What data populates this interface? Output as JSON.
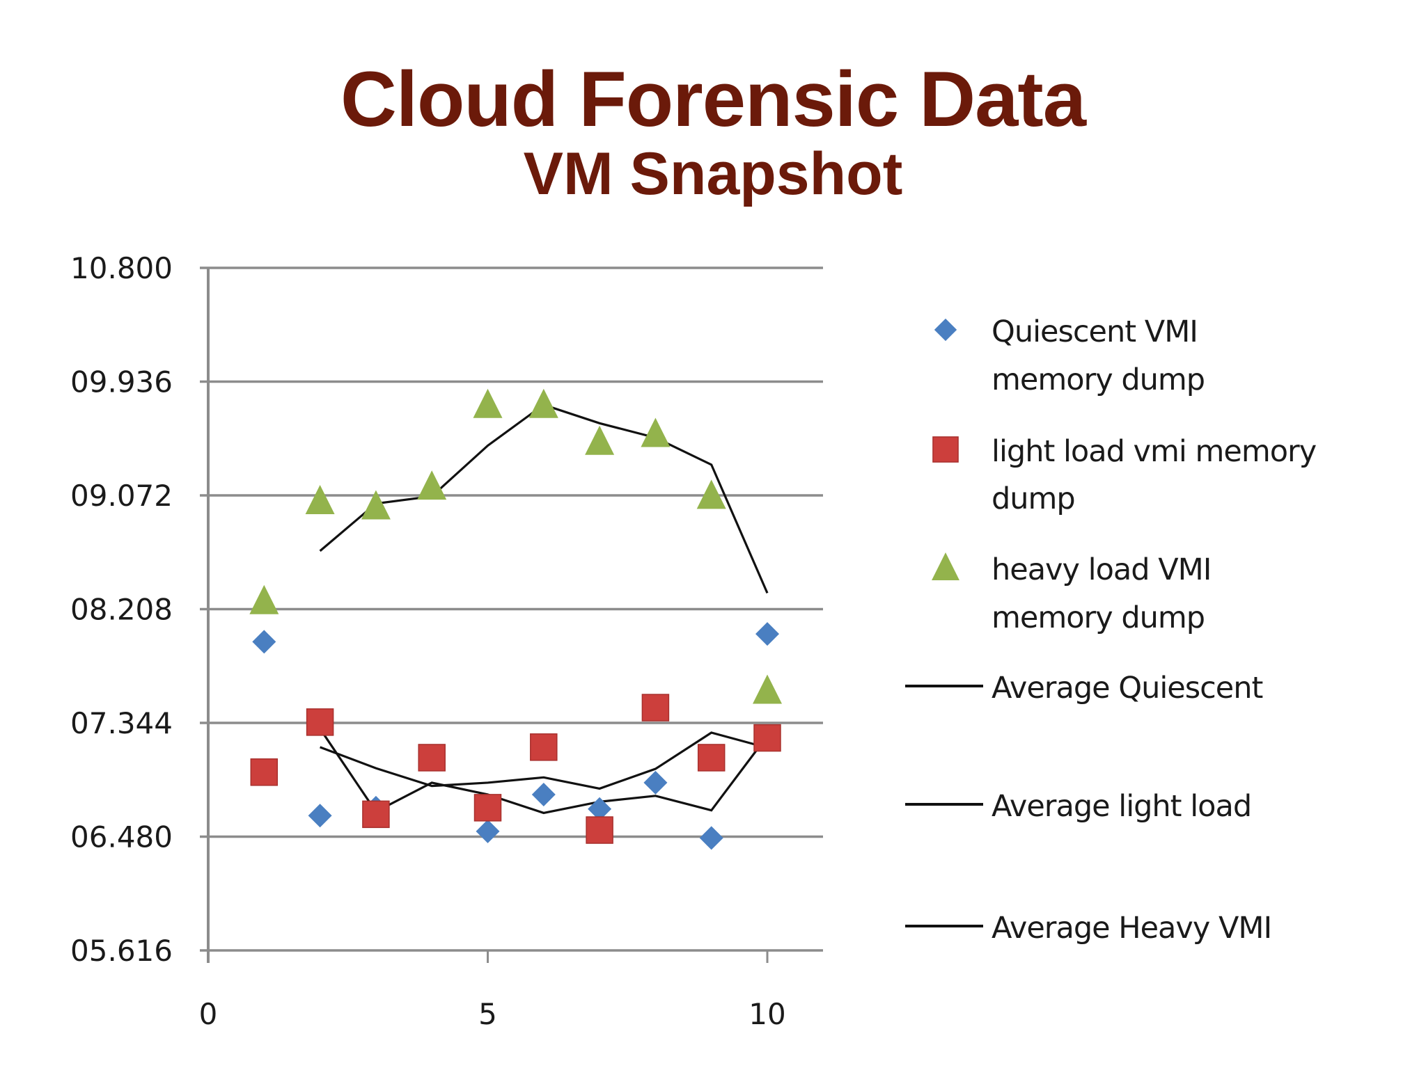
{
  "header": {
    "title": "Cloud Forensic Data",
    "subtitle": "VM Snapshot"
  },
  "colors": {
    "title": "#6b1a0a",
    "quiescent": "#4a7fc1",
    "light": "#cc3f3c",
    "heavy": "#93b34c",
    "average_line": "#111111",
    "grid": "#8c8c8c"
  },
  "chart_data": {
    "type": "scatter",
    "title": "Cloud Forensic Data — VM Snapshot",
    "xlabel": "",
    "ylabel": "",
    "xlim": [
      0,
      11
    ],
    "ylim": [
      5.616,
      10.8
    ],
    "x_ticks": [
      "0",
      "5",
      "10"
    ],
    "y_ticks": [
      "10.800",
      "09.936",
      "09.072",
      "08.208",
      "07.344",
      "06.480",
      "05.616"
    ],
    "grid": true,
    "legend_position": "right",
    "x": [
      1,
      2,
      3,
      4,
      5,
      6,
      7,
      8,
      9,
      10
    ],
    "series": [
      {
        "name": "Quiescent VMI memory dump",
        "marker": "diamond",
        "color": "#4a7fc1",
        "values": [
          7.96,
          6.64,
          6.7,
          7.08,
          6.52,
          6.8,
          6.69,
          6.89,
          6.47,
          8.02
        ]
      },
      {
        "name": "light load vmi memory dump",
        "marker": "square",
        "color": "#cc3f3c",
        "values": [
          6.97,
          7.35,
          6.65,
          7.08,
          6.7,
          7.16,
          6.53,
          7.46,
          7.08,
          7.23
        ]
      },
      {
        "name": "heavy load VMI memory dump",
        "marker": "triangle",
        "color": "#93b34c",
        "values": [
          8.27,
          9.03,
          8.99,
          9.14,
          9.76,
          9.76,
          9.48,
          9.54,
          9.07,
          7.59
        ]
      },
      {
        "name": "Average Quiescent",
        "type": "line",
        "color": "#111111",
        "x": [
          2,
          3,
          4,
          5,
          6,
          7,
          8,
          9,
          10
        ],
        "values": [
          7.3,
          6.67,
          6.89,
          6.8,
          6.66,
          6.745,
          6.79,
          6.68,
          7.245
        ]
      },
      {
        "name": "Average light load",
        "type": "line",
        "color": "#111111",
        "x": [
          2,
          3,
          4,
          5,
          6,
          7,
          8,
          9,
          10
        ],
        "values": [
          7.16,
          7.0,
          6.865,
          6.89,
          6.93,
          6.845,
          6.995,
          7.27,
          7.155
        ]
      },
      {
        "name": "Average Heavy VMI",
        "type": "line",
        "color": "#111111",
        "x": [
          2,
          3,
          4,
          5,
          6,
          7,
          8,
          9,
          10
        ],
        "values": [
          8.65,
          9.01,
          9.065,
          9.45,
          9.76,
          9.62,
          9.51,
          9.305,
          8.33
        ]
      }
    ]
  },
  "legend": {
    "items": [
      {
        "lines": [
          "Quiescent VMI",
          "memory dump"
        ]
      },
      {
        "lines": [
          "light load vmi memory",
          "dump"
        ]
      },
      {
        "lines": [
          "heavy load VMI",
          "memory dump"
        ]
      },
      {
        "lines": [
          "Average Quiescent"
        ]
      },
      {
        "lines": [
          "Average light load"
        ]
      },
      {
        "lines": [
          "Average Heavy VMI"
        ]
      }
    ]
  }
}
